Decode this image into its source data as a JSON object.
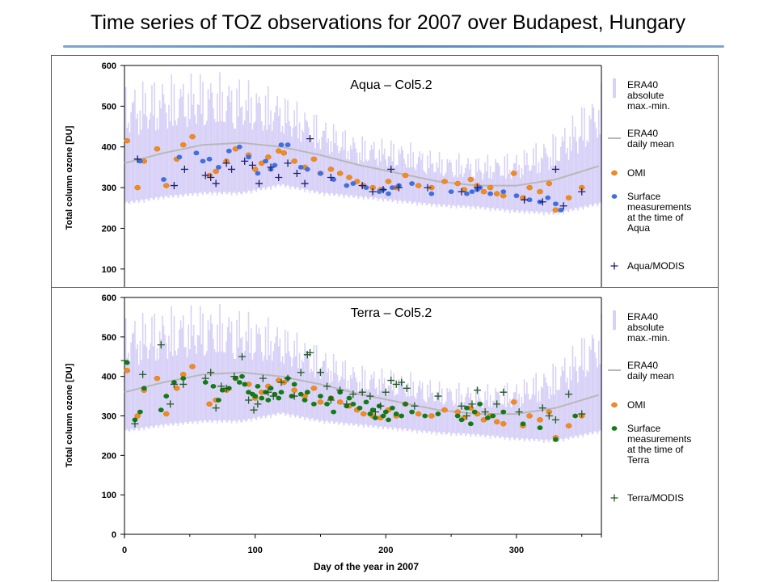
{
  "slide": {
    "title": "Time series of TOZ observations for 2007 over Budapest, Hungary"
  },
  "colors": {
    "era40_range": "#d8d1f7",
    "era40_mean": "#b8b8b8",
    "omi": "#f28a1c",
    "surface_aqua": "#3f6fe0",
    "surface_terra": "#127a16",
    "aqua_modis": "#1b1f6e",
    "terra_modis": "#1d5a1d",
    "title_rule": "#5c86c4"
  },
  "chart_data": [
    {
      "type": "scatter",
      "panel_label": "Aqua – Col5.2",
      "ylabel": "Total column ozone [DU]",
      "xlabel": "",
      "xlim": [
        0,
        365
      ],
      "ylim": [
        50,
        600
      ],
      "yticks": [
        100,
        200,
        300,
        400,
        500,
        600
      ],
      "xticks": [],
      "legend": [
        {
          "label": "ERA40 absolute max.-min.",
          "lines": [
            "ERA40",
            "absolute",
            "max.-min."
          ],
          "marker": "band"
        },
        {
          "label": "ERA40 daily mean",
          "lines": [
            "ERA40",
            "daily mean"
          ],
          "marker": "line"
        },
        {
          "label": "OMI",
          "lines": [
            "OMI"
          ],
          "marker": "omi"
        },
        {
          "label": "Surface measurements at the time of Aqua",
          "lines": [
            "Surface",
            "measurements",
            "at the time of",
            "Aqua"
          ],
          "marker": "surface"
        },
        {
          "label": "Aqua/MODIS",
          "lines": [
            "Aqua/MODIS"
          ],
          "marker": "plus"
        }
      ],
      "legend_position": "right",
      "era40_mean": {
        "x": [
          0,
          30,
          60,
          90,
          120,
          150,
          180,
          210,
          240,
          270,
          300,
          330,
          365
        ],
        "y": [
          360,
          385,
          405,
          410,
          400,
          380,
          355,
          335,
          315,
          305,
          305,
          320,
          355
        ]
      },
      "era40_range": {
        "x": [
          0,
          30,
          60,
          90,
          120,
          150,
          180,
          210,
          240,
          270,
          300,
          330,
          365
        ],
        "min": [
          255,
          270,
          280,
          280,
          300,
          280,
          270,
          260,
          250,
          245,
          235,
          230,
          255
        ],
        "max": [
          560,
          580,
          590,
          575,
          540,
          480,
          430,
          420,
          390,
          380,
          390,
          440,
          560
        ]
      },
      "series": [
        {
          "name": "OMI",
          "role": "omi",
          "x": [
            2,
            10,
            15,
            25,
            32,
            40,
            45,
            52,
            65,
            70,
            78,
            85,
            95,
            100,
            105,
            110,
            118,
            122,
            130,
            138,
            145,
            150,
            158,
            165,
            172,
            178,
            183,
            190,
            196,
            202,
            208,
            215,
            225,
            235,
            245,
            255,
            260,
            265,
            270,
            275,
            280,
            285,
            290,
            298,
            305,
            310,
            318,
            325,
            330,
            340,
            350
          ],
          "y": [
            415,
            300,
            365,
            395,
            305,
            370,
            405,
            425,
            330,
            340,
            365,
            395,
            380,
            345,
            360,
            375,
            390,
            385,
            365,
            350,
            370,
            335,
            345,
            335,
            325,
            315,
            305,
            300,
            295,
            315,
            300,
            330,
            305,
            300,
            315,
            310,
            295,
            320,
            305,
            290,
            300,
            285,
            280,
            335,
            275,
            300,
            290,
            310,
            245,
            275,
            300
          ]
        },
        {
          "name": "Surface measurements at the time of Aqua",
          "role": "surface",
          "x": [
            12,
            30,
            42,
            55,
            60,
            65,
            72,
            80,
            88,
            95,
            102,
            108,
            112,
            115,
            120,
            125,
            135,
            140,
            150,
            160,
            170,
            175,
            185,
            195,
            198,
            202,
            205,
            210,
            220,
            235,
            250,
            262,
            266,
            270,
            272,
            280,
            290,
            300,
            310,
            318,
            324,
            330,
            334
          ],
          "y": [
            365,
            320,
            375,
            385,
            365,
            370,
            350,
            390,
            400,
            375,
            335,
            365,
            345,
            355,
            405,
            405,
            350,
            345,
            335,
            320,
            305,
            310,
            300,
            290,
            295,
            285,
            300,
            305,
            310,
            285,
            290,
            285,
            290,
            295,
            300,
            285,
            290,
            280,
            270,
            265,
            275,
            260,
            245
          ]
        },
        {
          "name": "Aqua/MODIS",
          "role": "plus",
          "x": [
            10,
            38,
            46,
            62,
            66,
            70,
            78,
            82,
            92,
            98,
            103,
            112,
            118,
            125,
            132,
            138,
            142,
            158,
            182,
            190,
            198,
            204,
            210,
            232,
            258,
            270,
            306,
            320,
            330,
            336,
            350
          ],
          "y": [
            370,
            305,
            345,
            330,
            325,
            310,
            360,
            345,
            365,
            355,
            310,
            350,
            325,
            360,
            335,
            310,
            420,
            325,
            305,
            290,
            295,
            345,
            300,
            300,
            290,
            300,
            270,
            265,
            345,
            255,
            290
          ]
        }
      ]
    },
    {
      "type": "scatter",
      "panel_label": "Terra – Col5.2",
      "ylabel": "Total column ozone [DU]",
      "xlabel": "Day of the year in 2007",
      "xlim": [
        0,
        365
      ],
      "ylim": [
        0,
        600
      ],
      "yticks": [
        0,
        100,
        200,
        300,
        400,
        500,
        600
      ],
      "xticks": [
        0,
        100,
        200,
        300
      ],
      "legend": [
        {
          "label": "ERA40 absolute max.-min.",
          "lines": [
            "ERA40",
            "absolute",
            "max.-min."
          ],
          "marker": "band"
        },
        {
          "label": "ERA40 daily mean",
          "lines": [
            "ERA40",
            "daily mean"
          ],
          "marker": "line"
        },
        {
          "label": "OMI",
          "lines": [
            "OMI"
          ],
          "marker": "omi"
        },
        {
          "label": "Surface measurements at the time of Terra",
          "lines": [
            "Surface",
            "measurements",
            "at the time of",
            "Terra"
          ],
          "marker": "surface"
        },
        {
          "label": "Terra/MODIS",
          "lines": [
            "Terra/MODIS"
          ],
          "marker": "plus"
        }
      ],
      "legend_position": "right",
      "era40_mean": {
        "x": [
          0,
          30,
          60,
          90,
          120,
          150,
          180,
          210,
          240,
          270,
          300,
          330,
          365
        ],
        "y": [
          360,
          385,
          405,
          410,
          400,
          380,
          355,
          335,
          315,
          305,
          305,
          320,
          355
        ]
      },
      "era40_range": {
        "x": [
          0,
          30,
          60,
          90,
          120,
          150,
          180,
          210,
          240,
          270,
          300,
          330,
          365
        ],
        "min": [
          255,
          270,
          280,
          280,
          300,
          280,
          270,
          260,
          250,
          245,
          235,
          230,
          255
        ],
        "max": [
          560,
          580,
          590,
          575,
          540,
          480,
          430,
          420,
          390,
          380,
          390,
          440,
          560
        ]
      },
      "series": [
        {
          "name": "OMI",
          "role": "omi",
          "x": [
            2,
            10,
            15,
            25,
            32,
            40,
            45,
            52,
            65,
            70,
            78,
            85,
            95,
            100,
            105,
            110,
            118,
            122,
            130,
            138,
            145,
            150,
            158,
            165,
            172,
            178,
            183,
            190,
            196,
            202,
            208,
            215,
            225,
            235,
            245,
            255,
            260,
            265,
            270,
            275,
            280,
            285,
            290,
            298,
            305,
            310,
            318,
            325,
            330,
            340,
            350
          ],
          "y": [
            415,
            300,
            365,
            395,
            305,
            370,
            405,
            425,
            330,
            340,
            365,
            395,
            380,
            345,
            360,
            375,
            390,
            385,
            365,
            350,
            370,
            335,
            345,
            335,
            325,
            315,
            305,
            300,
            295,
            315,
            300,
            330,
            305,
            300,
            315,
            310,
            295,
            320,
            305,
            290,
            300,
            285,
            280,
            335,
            275,
            300,
            290,
            310,
            245,
            275,
            300
          ]
        },
        {
          "name": "Surface measurements at the time of Terra",
          "role": "surface",
          "x": [
            2,
            8,
            12,
            15,
            28,
            32,
            38,
            45,
            62,
            68,
            72,
            75,
            80,
            85,
            88,
            90,
            92,
            95,
            98,
            100,
            102,
            105,
            108,
            110,
            112,
            115,
            118,
            120,
            125,
            128,
            130,
            135,
            138,
            140,
            145,
            150,
            155,
            158,
            160,
            165,
            170,
            172,
            175,
            180,
            185,
            188,
            190,
            192,
            195,
            198,
            200,
            202,
            205,
            208,
            212,
            215,
            220,
            230,
            240,
            255,
            258,
            262,
            265,
            268,
            272,
            278,
            282,
            290,
            305,
            318,
            330,
            345
          ],
          "y": [
            435,
            290,
            310,
            370,
            315,
            350,
            385,
            395,
            385,
            375,
            340,
            365,
            370,
            395,
            385,
            400,
            380,
            360,
            355,
            350,
            375,
            345,
            360,
            340,
            370,
            355,
            345,
            360,
            395,
            350,
            380,
            355,
            340,
            360,
            330,
            350,
            330,
            345,
            310,
            360,
            325,
            345,
            330,
            320,
            335,
            305,
            315,
            295,
            325,
            300,
            310,
            290,
            320,
            305,
            300,
            330,
            310,
            300,
            305,
            300,
            290,
            320,
            280,
            310,
            330,
            295,
            300,
            310,
            280,
            270,
            240,
            300
          ]
        },
        {
          "name": "Terra/MODIS",
          "role": "plus",
          "x": [
            0,
            8,
            14,
            28,
            35,
            38,
            45,
            62,
            66,
            70,
            74,
            78,
            84,
            90,
            95,
            99,
            102,
            106,
            110,
            114,
            120,
            125,
            130,
            135,
            140,
            142,
            150,
            155,
            158,
            165,
            170,
            175,
            182,
            188,
            192,
            196,
            200,
            204,
            208,
            212,
            216,
            222,
            240,
            258,
            262,
            266,
            270,
            276,
            285,
            290,
            302,
            320,
            325,
            330,
            340,
            350
          ],
          "y": [
            440,
            280,
            405,
            480,
            330,
            380,
            380,
            395,
            410,
            320,
            375,
            370,
            400,
            450,
            340,
            315,
            330,
            395,
            360,
            350,
            385,
            395,
            350,
            410,
            455,
            460,
            410,
            375,
            340,
            365,
            330,
            355,
            360,
            350,
            310,
            325,
            360,
            390,
            380,
            385,
            370,
            325,
            350,
            325,
            300,
            330,
            365,
            310,
            330,
            360,
            310,
            320,
            300,
            290,
            355,
            305
          ]
        }
      ]
    }
  ]
}
